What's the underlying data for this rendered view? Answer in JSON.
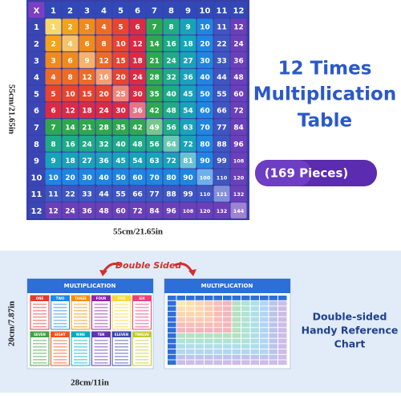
{
  "main_table": {
    "header": [
      "X",
      "1",
      "2",
      "3",
      "4",
      "5",
      "6",
      "7",
      "8",
      "9",
      "10",
      "11",
      "12"
    ],
    "rows": [
      [
        1,
        1,
        2,
        3,
        4,
        5,
        6,
        7,
        8,
        9,
        10,
        11,
        12
      ],
      [
        2,
        2,
        4,
        6,
        8,
        10,
        12,
        14,
        16,
        18,
        20,
        22,
        24
      ],
      [
        3,
        3,
        6,
        9,
        12,
        15,
        18,
        21,
        24,
        27,
        30,
        33,
        36
      ],
      [
        4,
        4,
        8,
        12,
        16,
        20,
        24,
        28,
        32,
        36,
        40,
        44,
        48
      ],
      [
        5,
        5,
        10,
        15,
        20,
        25,
        30,
        35,
        40,
        45,
        50,
        55,
        60
      ],
      [
        6,
        6,
        12,
        18,
        24,
        30,
        36,
        42,
        48,
        54,
        60,
        66,
        72
      ],
      [
        7,
        7,
        14,
        21,
        28,
        35,
        42,
        49,
        56,
        63,
        70,
        77,
        84
      ],
      [
        8,
        8,
        16,
        24,
        32,
        40,
        48,
        56,
        64,
        72,
        80,
        88,
        96
      ],
      [
        9,
        9,
        18,
        27,
        36,
        45,
        54,
        63,
        72,
        81,
        90,
        99,
        108
      ],
      [
        10,
        10,
        20,
        30,
        40,
        50,
        60,
        70,
        80,
        90,
        100,
        110,
        120
      ],
      [
        11,
        11,
        22,
        33,
        44,
        55,
        66,
        77,
        88,
        99,
        110,
        121,
        132
      ],
      [
        12,
        12,
        24,
        36,
        48,
        60,
        72,
        84,
        96,
        108,
        120,
        132,
        144
      ]
    ]
  },
  "main_size": {
    "height": "55cm/21.65in",
    "width": "55cm/21.65in"
  },
  "title": [
    "12 Times",
    "Multiplication",
    "Table"
  ],
  "pieces": "(169 Pieces)",
  "reference": {
    "badge": "Double Sided",
    "cards": [
      {
        "title": "MULTIPLICATION",
        "labels": [
          "ONE",
          "TWO",
          "THREE",
          "FOUR",
          "FIVE",
          "SIX",
          "SEVEN",
          "EIGHT",
          "NINE",
          "TEN",
          "ELEVEN",
          "TWELVE"
        ]
      },
      {
        "title": "MULTIPLICATION"
      }
    ],
    "height": "20cm/7.87in",
    "width": "28cm/11in",
    "caption": [
      "Double-sided",
      "Handy Reference",
      "Chart"
    ]
  }
}
